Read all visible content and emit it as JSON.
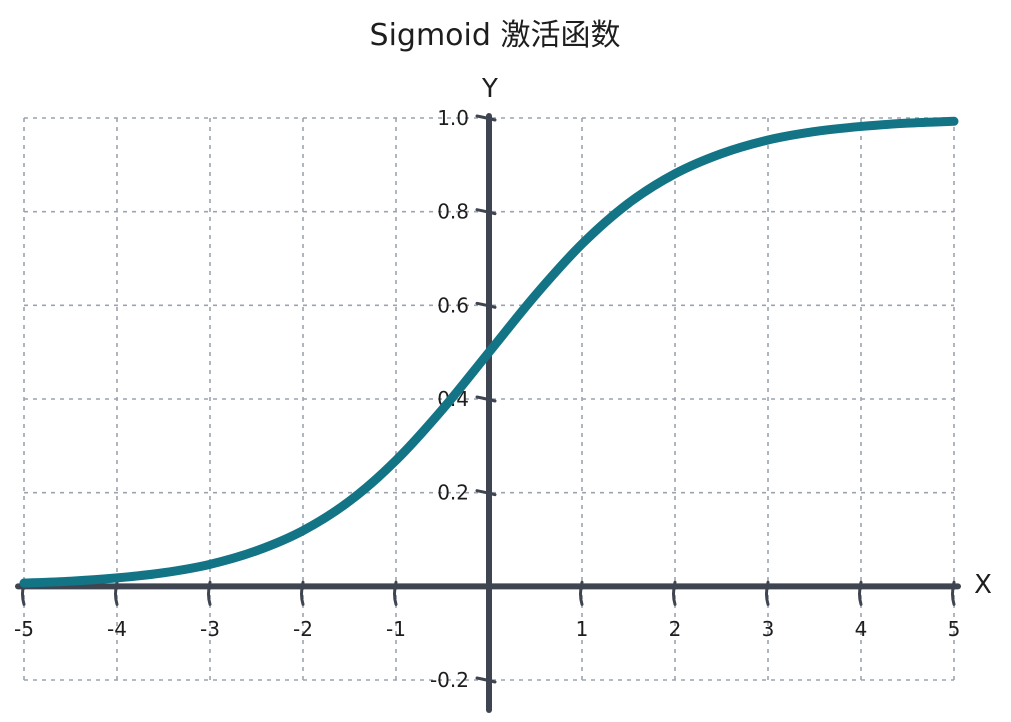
{
  "chart_data": {
    "type": "line",
    "title": "Sigmoid 激活函数",
    "xlabel": "X",
    "ylabel": "Y",
    "xlim": [
      -5,
      5
    ],
    "ylim": [
      -0.2,
      1.0
    ],
    "x_ticks": [
      -5,
      -4,
      -3,
      -2,
      -1,
      1,
      2,
      3,
      4,
      5
    ],
    "x_tick_labels": [
      "-5",
      "-4",
      "-3",
      "-2",
      "-1",
      "1",
      "2",
      "3",
      "4",
      "5"
    ],
    "y_ticks": [
      1.0,
      0.8,
      0.6,
      0.4,
      0.2,
      -0.2
    ],
    "y_tick_labels": [
      "1.0",
      "0.8",
      "0.6",
      "0.4",
      "0.2",
      "-0.2"
    ],
    "grid": true,
    "series": [
      {
        "x": [
          -5,
          -4.5,
          -4,
          -3.5,
          -3,
          -2.5,
          -2,
          -1.5,
          -1,
          -0.5,
          0,
          0.5,
          1,
          1.5,
          2,
          2.5,
          3,
          3.5,
          4,
          4.5,
          5
        ],
        "values": [
          0.007,
          0.011,
          0.018,
          0.029,
          0.047,
          0.076,
          0.119,
          0.182,
          0.269,
          0.378,
          0.5,
          0.622,
          0.731,
          0.818,
          0.881,
          0.924,
          0.953,
          0.971,
          0.982,
          0.989,
          0.993
        ],
        "color": "#137485"
      }
    ],
    "colors": {
      "curve": "#137485",
      "axis": "#3f4550",
      "grid": "#9ca3af",
      "text": "#1e1e1e"
    }
  }
}
